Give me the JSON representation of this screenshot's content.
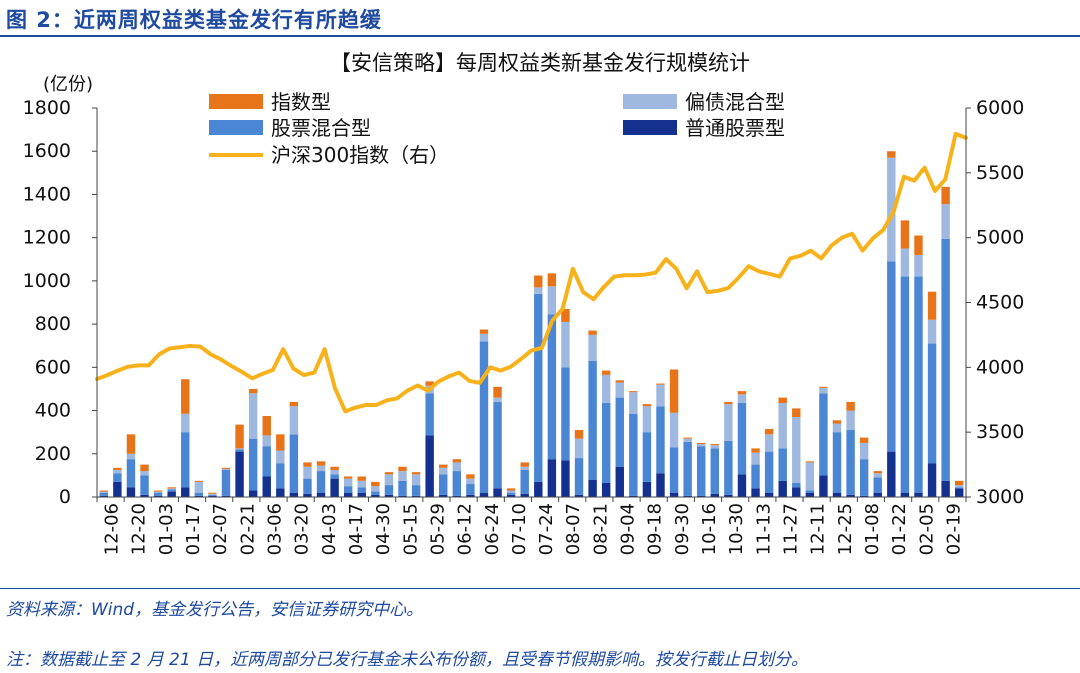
{
  "figure_title": "图 2：近两周权益类基金发行有所趋缓",
  "source_note": "资料来源：Wind，基金发行公告，安信证券研究中心。",
  "footnote": "注：数据截止至 2 月 21 日，近两周部分已发行基金未公布份额，且受春节假期影响。按发行截止日划分。",
  "colors": {
    "brand": "#1e4aa0",
    "index_fund": "#e8741a",
    "bond_hybrid": "#9fb8df",
    "stock_hybrid": "#4a86d4",
    "stock_fund": "#14318f",
    "csi300": "#f7b21b"
  },
  "chart_data": {
    "type": "bar",
    "stacked": true,
    "title": "【安信策略】每周权益类新基金发行规模统计",
    "left_unit": "(亿份)",
    "left_axis": {
      "min": 0,
      "max": 1800,
      "ticks": [
        0,
        200,
        400,
        600,
        800,
        1000,
        1200,
        1400,
        1600,
        1800
      ]
    },
    "right_axis": {
      "min": 3000,
      "max": 6000,
      "ticks": [
        3000,
        3500,
        4000,
        4500,
        5000,
        5500,
        6000
      ]
    },
    "grid": false,
    "legend": [
      {
        "key": "index",
        "label": "指数型",
        "kind": "box",
        "color": "#e8741a"
      },
      {
        "key": "bond",
        "label": "偏债混合型",
        "kind": "box",
        "color": "#9fb8df"
      },
      {
        "key": "stockhyb",
        "label": "股票混合型",
        "kind": "box",
        "color": "#4a86d4"
      },
      {
        "key": "stock",
        "label": "普通股票型",
        "kind": "box",
        "color": "#14318f"
      },
      {
        "key": "csi",
        "label": "沪深300指数（右）",
        "kind": "line",
        "color": "#f7b21b"
      }
    ],
    "x_tick_labels": [
      "12-06",
      "12-20",
      "01-03",
      "01-17",
      "02-07",
      "02-21",
      "03-06",
      "03-20",
      "04-03",
      "04-17",
      "04-30",
      "05-15",
      "05-29",
      "06-12",
      "06-24",
      "07-10",
      "07-24",
      "08-07",
      "08-21",
      "09-04",
      "09-18",
      "09-30",
      "10-16",
      "10-30",
      "11-13",
      "11-27",
      "12-11",
      "12-25",
      "01-08",
      "01-22",
      "02-05",
      "02-19"
    ],
    "bar_count": 64,
    "series": [
      {
        "name": "普通股票型",
        "color": "#14318f",
        "values": [
          5,
          70,
          45,
          10,
          5,
          25,
          45,
          5,
          5,
          5,
          210,
          30,
          95,
          40,
          20,
          15,
          20,
          85,
          20,
          20,
          10,
          10,
          5,
          5,
          285,
          10,
          5,
          10,
          20,
          40,
          10,
          15,
          70,
          175,
          170,
          10,
          80,
          65,
          140,
          5,
          70,
          110,
          20,
          5,
          5,
          15,
          10,
          105,
          40,
          20,
          75,
          45,
          20,
          100,
          20,
          10,
          5,
          20,
          210,
          20,
          20,
          155,
          75,
          40
        ]
      },
      {
        "name": "股票混合型",
        "color": "#4a86d4",
        "values": [
          15,
          40,
          130,
          90,
          15,
          10,
          255,
          15,
          5,
          120,
          10,
          240,
          140,
          115,
          270,
          70,
          100,
          20,
          30,
          25,
          15,
          45,
          70,
          50,
          195,
          95,
          115,
          50,
          700,
          400,
          10,
          110,
          870,
          670,
          430,
          170,
          550,
          370,
          320,
          380,
          230,
          310,
          210,
          250,
          230,
          210,
          250,
          330,
          110,
          190,
          150,
          20,
          10,
          380,
          280,
          300,
          170,
          70,
          880,
          1000,
          1000,
          555,
          1120,
          5
        ]
      },
      {
        "name": "偏债混合型",
        "color": "#9fb8df",
        "values": [
          5,
          15,
          25,
          20,
          5,
          5,
          85,
          50,
          5,
          5,
          5,
          210,
          50,
          60,
          130,
          55,
          25,
          20,
          35,
          30,
          25,
          50,
          45,
          50,
          35,
          30,
          40,
          25,
          35,
          20,
          10,
          15,
          30,
          130,
          210,
          90,
          120,
          130,
          70,
          100,
          120,
          100,
          160,
          15,
          10,
          15,
          170,
          40,
          55,
          80,
          210,
          305,
          130,
          25,
          40,
          90,
          75,
          20,
          480,
          130,
          100,
          110,
          160,
          10
        ]
      },
      {
        "name": "指数型",
        "color": "#e8741a",
        "values": [
          5,
          10,
          90,
          30,
          5,
          5,
          160,
          5,
          5,
          5,
          110,
          20,
          90,
          75,
          20,
          20,
          20,
          15,
          10,
          20,
          20,
          10,
          20,
          10,
          20,
          15,
          15,
          20,
          20,
          50,
          10,
          20,
          55,
          60,
          60,
          40,
          20,
          20,
          10,
          5,
          10,
          5,
          200,
          5,
          5,
          5,
          10,
          15,
          20,
          25,
          25,
          40,
          5,
          5,
          15,
          40,
          25,
          10,
          30,
          130,
          90,
          130,
          80,
          20
        ]
      }
    ],
    "line": {
      "name": "沪深300指数（右）",
      "axis": "right",
      "values": [
        3910,
        3940,
        3975,
        4005,
        4015,
        4015,
        4100,
        4145,
        4155,
        4165,
        4160,
        4100,
        4060,
        4010,
        3965,
        3915,
        3950,
        3980,
        4140,
        3990,
        3940,
        3960,
        4140,
        3840,
        3660,
        3690,
        3710,
        3710,
        3745,
        3760,
        3820,
        3860,
        3820,
        3890,
        3930,
        3960,
        3895,
        3880,
        4000,
        3975,
        4005,
        4065,
        4130,
        4150,
        4360,
        4450,
        4760,
        4580,
        4525,
        4620,
        4700,
        4710,
        4710,
        4715,
        4730,
        4835,
        4760,
        4610,
        4740,
        4580,
        4590,
        4610,
        4690,
        4780,
        4740,
        4720,
        4700,
        4840,
        4860,
        4900,
        4840,
        4940,
        5000,
        5030,
        4900,
        4995,
        5060,
        5200,
        5470,
        5440,
        5540,
        5360,
        5450,
        5800,
        5770
      ]
    }
  }
}
